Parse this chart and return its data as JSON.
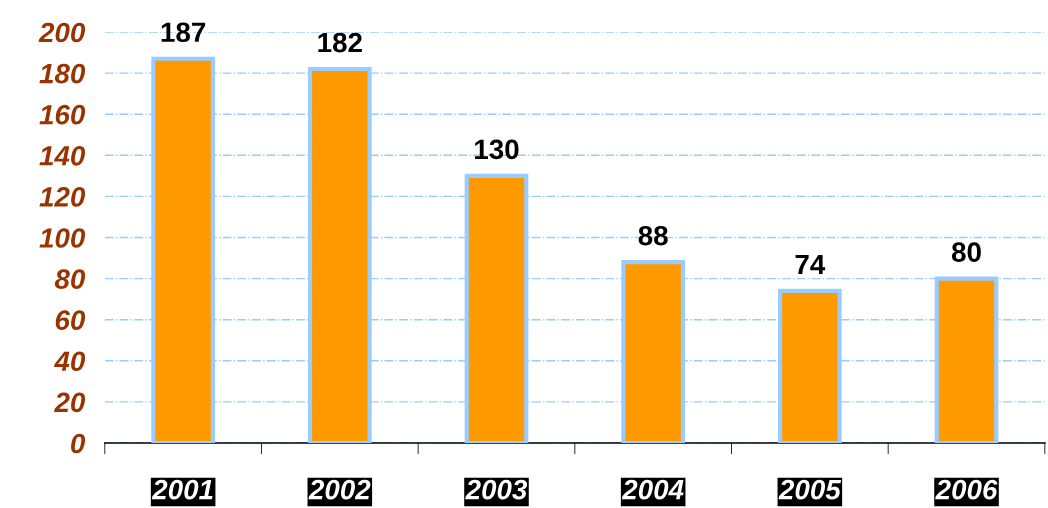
{
  "chart_data": {
    "type": "bar",
    "categories": [
      "2001",
      "2002",
      "2003",
      "2004",
      "2005",
      "2006"
    ],
    "values": [
      187,
      182,
      130,
      88,
      74,
      80
    ],
    "color": "#ff9900",
    "ylim": [
      0,
      200
    ],
    "yticks": [
      0,
      20,
      40,
      60,
      80,
      100,
      120,
      140,
      160,
      180,
      200
    ],
    "grid": "y",
    "data_labels": true
  }
}
